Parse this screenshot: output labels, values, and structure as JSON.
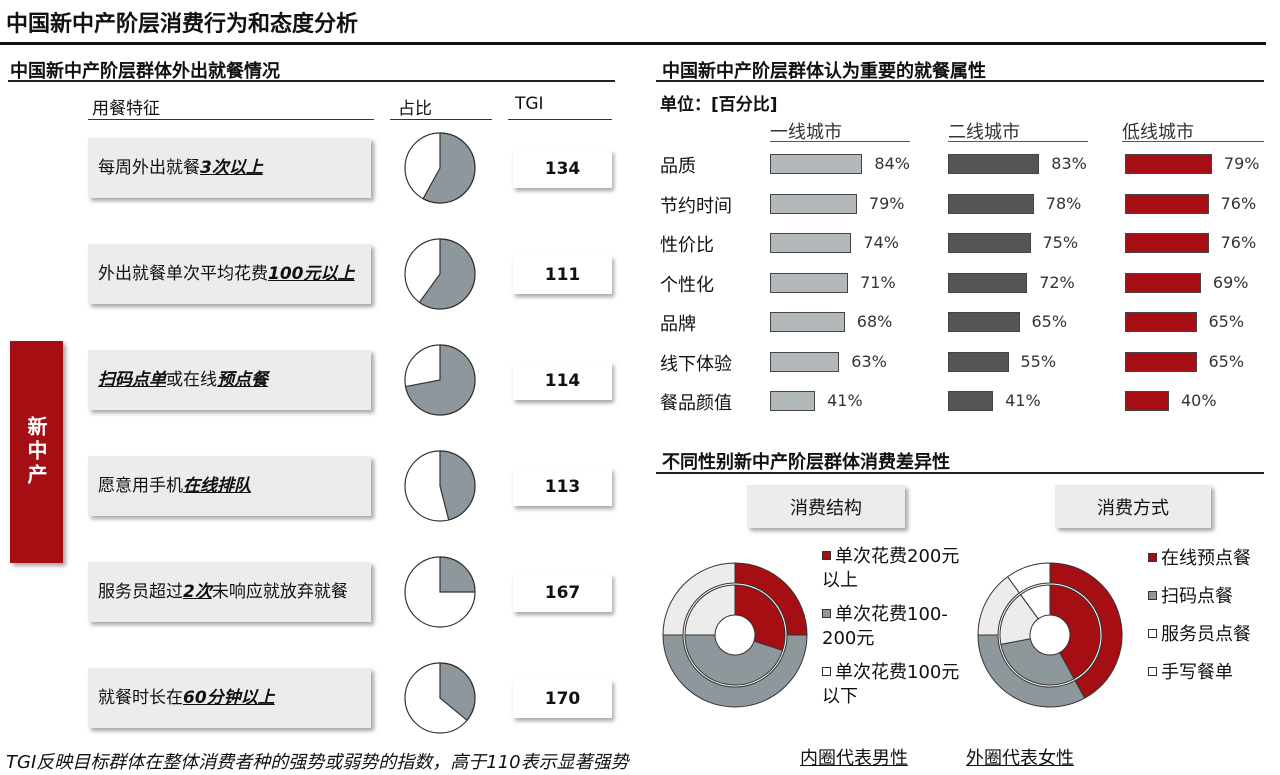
{
  "title": "中国新中产阶层消费行为和态度分析",
  "left": {
    "section_title": "中国新中产阶层群体外出就餐情况",
    "col_feature": "用餐特征",
    "col_share": "占比",
    "col_tgi": "TGI",
    "side_label": "新中产",
    "rows": [
      {
        "parts": [
          {
            "t": "每周外出就餐",
            "em": false
          },
          {
            "t": "3次以上",
            "em": true
          }
        ],
        "share": 0.58,
        "tgi": "134"
      },
      {
        "parts": [
          {
            "t": "外出就餐单次平均花费",
            "em": false
          },
          {
            "t": "100元以上",
            "em": true
          }
        ],
        "share": 0.6,
        "tgi": "111"
      },
      {
        "parts": [
          {
            "t": "扫码点单",
            "em": true
          },
          {
            "t": "或在线",
            "em": false
          },
          {
            "t": "预点餐",
            "em": true
          }
        ],
        "share": 0.72,
        "tgi": "114"
      },
      {
        "parts": [
          {
            "t": "愿意用手机",
            "em": false
          },
          {
            "t": "在线排队",
            "em": true
          }
        ],
        "share": 0.46,
        "tgi": "113"
      },
      {
        "parts": [
          {
            "t": "服务员超过",
            "em": false
          },
          {
            "t": "2次",
            "em": true
          },
          {
            "t": "未响应就放弃就餐",
            "em": false
          }
        ],
        "share": 0.25,
        "tgi": "167"
      },
      {
        "parts": [
          {
            "t": "就餐时长在",
            "em": false
          },
          {
            "t": "60分钟以上",
            "em": true
          }
        ],
        "share": 0.36,
        "tgi": "170"
      }
    ],
    "footnote": "TGI反映目标群体在整体消费者种的强势或弱势的指数，高于110表示显著强势"
  },
  "colors": {
    "gray": "#8e979c",
    "light_gray": "#b3b8ba",
    "dark_gray": "#555555",
    "red": "#a50e12",
    "white": "#ffffff"
  },
  "chart_data": [
    {
      "type": "bar",
      "title": "中国新中产阶层群体认为重要的就餐属性",
      "unit_label": "单位：[百分比]",
      "categories": [
        "品质",
        "节约时间",
        "性价比",
        "个性化",
        "品牌",
        "线下体验",
        "餐品颜值"
      ],
      "series": [
        {
          "name": "一线城市",
          "values": [
            84,
            79,
            74,
            71,
            68,
            63,
            41
          ]
        },
        {
          "name": "二线城市",
          "values": [
            83,
            78,
            75,
            72,
            65,
            55,
            41
          ]
        },
        {
          "name": "低线城市",
          "values": [
            79,
            76,
            76,
            69,
            65,
            65,
            40
          ]
        }
      ],
      "value_suffix": "%",
      "xlim": [
        0,
        100
      ]
    },
    {
      "type": "pie",
      "title": "不同性别新中产阶层群体消费差异性",
      "charts": [
        {
          "label": "消费结构",
          "legend": [
            "单次花费200元以上",
            "单次花费100-200元",
            "单次花费100元以下"
          ],
          "inner_male": [
            0.3,
            0.45,
            0.25
          ],
          "outer_female": [
            0.25,
            0.5,
            0.25
          ]
        },
        {
          "label": "消费方式",
          "legend": [
            "在线预点餐",
            "扫码点餐",
            "服务员点餐",
            "手写餐单"
          ],
          "inner_male": [
            0.42,
            0.3,
            0.18,
            0.1
          ],
          "outer_female": [
            0.42,
            0.33,
            0.15,
            0.1
          ]
        }
      ],
      "notes": [
        "内圈代表男性",
        "外圈代表女性"
      ]
    }
  ]
}
